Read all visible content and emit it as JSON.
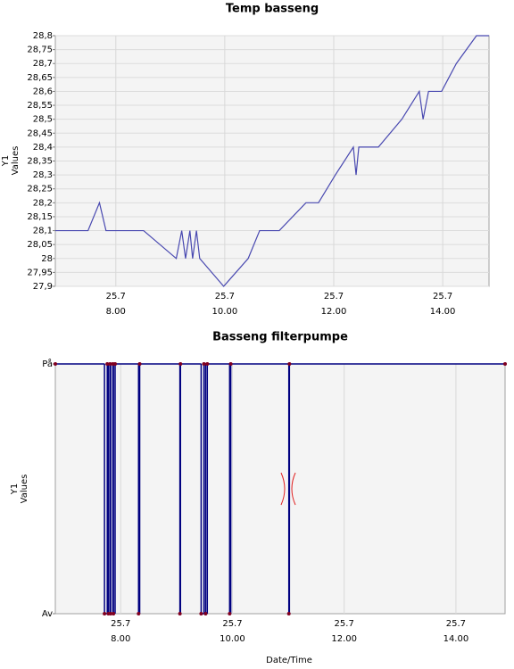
{
  "chart_data": [
    {
      "type": "line",
      "title": "Temp basseng",
      "ylabel": [
        "Y1",
        "Values"
      ],
      "color": "#4848b0",
      "grid": true,
      "x": [
        6.89,
        7.49,
        7.7,
        7.82,
        8.51,
        9.11,
        9.21,
        9.28,
        9.36,
        9.41,
        9.48,
        9.54,
        9.98,
        10.43,
        10.64,
        11.0,
        11.49,
        11.72,
        12.03,
        12.36,
        12.41,
        12.46,
        12.82,
        13.25,
        13.57,
        13.64,
        13.74,
        13.98,
        14.25,
        14.62,
        14.85
      ],
      "values": [
        28.1,
        28.1,
        28.2,
        28.1,
        28.1,
        28.0,
        28.1,
        28.0,
        28.1,
        28.0,
        28.1,
        28.0,
        27.9,
        28.0,
        28.1,
        28.1,
        28.2,
        28.2,
        28.3,
        28.4,
        28.3,
        28.4,
        28.4,
        28.5,
        28.6,
        28.5,
        28.6,
        28.6,
        28.7,
        28.8,
        28.8
      ],
      "xlim": [
        6.89,
        14.85
      ],
      "xticks": [
        {
          "value": 8,
          "label": "8.00"
        },
        {
          "value": 10,
          "label": "10.00"
        },
        {
          "value": 12,
          "label": "12.00"
        },
        {
          "value": 14,
          "label": "14.00"
        }
      ],
      "xtick_dates": [
        "25.7",
        "25.7",
        "25.7",
        "25.7"
      ],
      "ylim": [
        27.9,
        28.8
      ],
      "yticks": [
        {
          "value": 27.9,
          "label": "27,9"
        },
        {
          "value": 27.95,
          "label": "27,95"
        },
        28,
        {
          "value": 28.05,
          "label": "28,05"
        },
        {
          "value": 28.1,
          "label": "28,1"
        },
        {
          "value": 28.15,
          "label": "28,15"
        },
        {
          "value": 28.2,
          "label": "28,2"
        },
        {
          "value": 28.25,
          "label": "28,25"
        },
        {
          "value": 28.3,
          "label": "28,3"
        },
        {
          "value": 28.35,
          "label": "28,35"
        },
        {
          "value": 28.4,
          "label": "28,4"
        },
        {
          "value": 28.45,
          "label": "28,45"
        },
        {
          "value": 28.5,
          "label": "28,5"
        },
        {
          "value": 28.55,
          "label": "28,55"
        },
        {
          "value": 28.6,
          "label": "28,6"
        },
        {
          "value": 28.65,
          "label": "28,65"
        },
        {
          "value": 28.7,
          "label": "28,7"
        },
        {
          "value": 28.75,
          "label": "28,75"
        },
        {
          "value": 28.8,
          "label": "28,8"
        }
      ]
    },
    {
      "type": "step",
      "title": "Basseng filterpumpe",
      "ylabel": [
        "Y1",
        "Values"
      ],
      "xlabel": "Date/Time",
      "color": "#000080",
      "marker_color": "#800020",
      "grid": false,
      "x": [
        6.83,
        7.71,
        7.76,
        7.78,
        7.81,
        7.82,
        7.86,
        7.87,
        7.9,
        8.32,
        8.34,
        9.06,
        9.07,
        9.44,
        9.49,
        9.52,
        9.55,
        9.95,
        9.97,
        11.01,
        11.02,
        14.88
      ],
      "values": [
        1,
        0,
        1,
        0,
        1,
        0,
        1,
        0,
        1,
        0,
        1,
        0,
        1,
        0,
        1,
        0,
        1,
        0,
        1,
        0,
        1,
        1
      ],
      "xlim": [
        6.83,
        14.88
      ],
      "xticks": [
        {
          "value": 8,
          "label": "8.00"
        },
        {
          "value": 10,
          "label": "10.00"
        },
        {
          "value": 12,
          "label": "12.00"
        },
        {
          "value": 14,
          "label": "14.00"
        }
      ],
      "xtick_dates": [
        "25.7",
        "25.7",
        "25.7",
        "25.7"
      ],
      "ylim": [
        0,
        1
      ],
      "yticks": [
        {
          "value": 1,
          "label": "På"
        },
        {
          "value": 0,
          "label": "Av"
        }
      ]
    }
  ]
}
